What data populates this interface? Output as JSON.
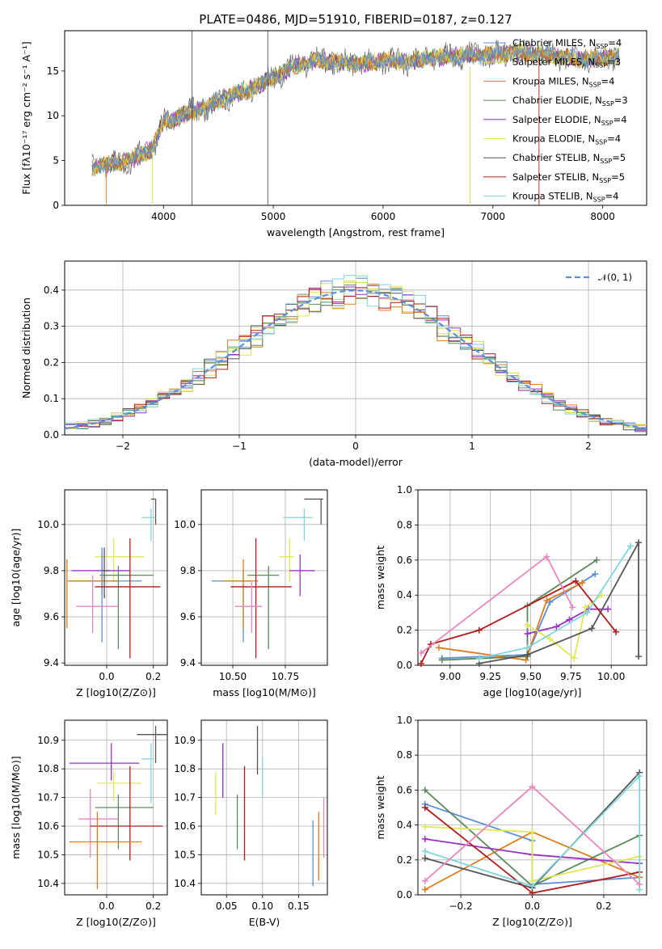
{
  "colors": {
    "c0": "#5b8fd9",
    "c1": "#d6d650",
    "c2": "#e07b1a",
    "c3": "#5a8a5a",
    "c4": "#9a2fc2",
    "c5": "#e0e856",
    "c6": "#555555",
    "c7": "#b01c1c",
    "c8": "#7fd7dd",
    "c9": "#e887c0"
  },
  "chart_data": [
    {
      "id": "spectrum",
      "type": "line",
      "title": "PLATE=0486, MJD=51910, FIBERID=0187, z=0.127",
      "xlabel": "wavelength [Angstrom, rest frame]",
      "ylabel": "Flux [fλ10⁻¹⁷ erg cm⁻² s⁻¹ A⁻¹]",
      "xlim": [
        3100,
        8400
      ],
      "ylim": [
        0,
        19.5
      ],
      "xticks": [
        "4000",
        "5000",
        "6000",
        "7000",
        "8000"
      ],
      "yticks": [
        "0",
        "5",
        "10",
        "15"
      ],
      "continuum": [
        [
          3350,
          4.2
        ],
        [
          3500,
          4.6
        ],
        [
          3700,
          5.0
        ],
        [
          3900,
          6.4
        ],
        [
          4000,
          9.2
        ],
        [
          4200,
          10.2
        ],
        [
          4400,
          11.0
        ],
        [
          4600,
          12.2
        ],
        [
          4800,
          13.0
        ],
        [
          5000,
          14.2
        ],
        [
          5200,
          15.6
        ],
        [
          5400,
          16.2
        ],
        [
          5600,
          16.0
        ],
        [
          5800,
          15.8
        ],
        [
          6000,
          16.2
        ],
        [
          6200,
          16.0
        ],
        [
          6400,
          16.4
        ],
        [
          6600,
          16.6
        ],
        [
          6800,
          16.8
        ],
        [
          7000,
          16.8
        ],
        [
          7200,
          17.1
        ],
        [
          7400,
          17.0
        ],
        [
          7600,
          16.6
        ],
        [
          7800,
          16.3
        ],
        [
          8000,
          16.5
        ],
        [
          8150,
          16.7
        ]
      ],
      "series": [
        {
          "name": "Chabrier MILES, N",
          "sub": "SSP",
          "suffix": "=4",
          "color": "#5b8fd9"
        },
        {
          "name": "Salpeter MILES, N",
          "sub": "SSP",
          "suffix": "=3",
          "color": "#d6d650"
        },
        {
          "name": "Kroupa MILES, N",
          "sub": "SSP",
          "suffix": "=4",
          "color": "#e07b1a"
        },
        {
          "name": "Chabrier ELODIE, N",
          "sub": "SSP",
          "suffix": "=3",
          "color": "#5a8a5a"
        },
        {
          "name": "Salpeter ELODIE, N",
          "sub": "SSP",
          "suffix": "=4",
          "color": "#9a2fc2"
        },
        {
          "name": "Kroupa ELODIE, N",
          "sub": "SSP",
          "suffix": "=4",
          "color": "#e0e856"
        },
        {
          "name": "Chabrier STELIB, N",
          "sub": "SSP",
          "suffix": "=5",
          "color": "#555555"
        },
        {
          "name": "Salpeter STELIB, N",
          "sub": "SSP",
          "suffix": "=5",
          "color": "#b01c1c"
        },
        {
          "name": "Kroupa STELIB, N",
          "sub": "SSP",
          "suffix": "=4",
          "color": "#7fd7dd"
        }
      ]
    },
    {
      "id": "residuals",
      "type": "bar",
      "xlabel": "(data-model)/error",
      "ylabel": "Normed distribution",
      "xlim": [
        -2.5,
        2.5
      ],
      "ylim": [
        0,
        0.48
      ],
      "xticks": [
        "−2",
        "−1",
        "0",
        "1",
        "2"
      ],
      "yticks": [
        "0.0",
        "0.1",
        "0.2",
        "0.3",
        "0.4"
      ],
      "legend": "𝒩(0, 1)",
      "bin_width": 0.1,
      "bin_start": -2.5
    },
    {
      "id": "age-Z",
      "type": "scatter",
      "xlabel": "Z [log10(Z/Z⊙)]",
      "ylabel": "age  [log10(age/yr)]",
      "xlim": [
        -0.18,
        0.26
      ],
      "ylim": [
        9.39,
        10.15
      ],
      "xticks": [
        "0.0",
        "0.2"
      ],
      "yticks": [
        "9.4",
        "9.6",
        "9.8",
        "10.0"
      ],
      "points": [
        {
          "x": 0.21,
          "y": 10.11,
          "xe": [
            0.19,
            0.21
          ],
          "ye": [
            10.11,
            10.0
          ],
          "c": "c6"
        },
        {
          "x": 0.19,
          "y": 10.03,
          "xe": [
            0.15,
            0.21
          ],
          "ye": [
            9.93,
            10.07
          ],
          "c": "c8"
        },
        {
          "x": 0.03,
          "y": 9.86,
          "xe": [
            -0.05,
            0.16
          ],
          "ye": [
            9.75,
            9.94
          ],
          "c": "c5"
        },
        {
          "x": -0.02,
          "y": 9.8,
          "xe": [
            -0.15,
            0.1
          ],
          "ye": [
            9.7,
            9.87
          ],
          "c": "c4"
        },
        {
          "x": 0.05,
          "y": 9.78,
          "xe": [
            -0.03,
            0.2
          ],
          "ye": [
            9.46,
            9.82
          ],
          "c": "c3"
        },
        {
          "x": -0.02,
          "y": 9.755,
          "xe": [
            -0.16,
            0.15
          ],
          "ye": [
            9.49,
            9.9
          ],
          "c": "c0"
        },
        {
          "x": -0.17,
          "y": 9.755,
          "xe": [
            -0.17,
            0.05
          ],
          "ye": [
            9.55,
            9.85
          ],
          "c": "c2"
        },
        {
          "x": 0.1,
          "y": 9.73,
          "xe": [
            -0.05,
            0.23
          ],
          "ye": [
            9.42,
            9.94
          ],
          "c": "c7"
        },
        {
          "x": -0.06,
          "y": 9.645,
          "xe": [
            -0.13,
            0.05
          ],
          "ye": [
            9.53,
            9.78
          ],
          "c": "c9"
        },
        {
          "x": -0.01,
          "y": 9.8,
          "xe": [
            -0.02,
            0.01
          ],
          "ye": [
            9.68,
            9.9
          ],
          "c": "c6"
        }
      ]
    },
    {
      "id": "age-mass",
      "type": "scatter",
      "xlabel": "mass [log10(M/M⊙)]",
      "ylabel": "",
      "xlim": [
        10.35,
        10.95
      ],
      "ylim": [
        9.39,
        10.15
      ],
      "xticks": [
        "10.50",
        "10.75"
      ],
      "yticks": [
        "9.4",
        "9.6",
        "9.8",
        "10.0"
      ],
      "points": [
        {
          "x": 10.92,
          "y": 10.11,
          "xe": [
            10.84,
            10.93
          ],
          "ye": [
            10.0,
            10.11
          ],
          "c": "c6"
        },
        {
          "x": 10.84,
          "y": 10.03,
          "xe": [
            10.74,
            10.88
          ],
          "ye": [
            9.93,
            10.07
          ],
          "c": "c8"
        },
        {
          "x": 10.77,
          "y": 9.86,
          "xe": [
            10.72,
            10.79
          ],
          "ye": [
            9.75,
            9.94
          ],
          "c": "c5"
        },
        {
          "x": 10.82,
          "y": 9.8,
          "xe": [
            10.77,
            10.89
          ],
          "ye": [
            9.69,
            9.87
          ],
          "c": "c4"
        },
        {
          "x": 10.67,
          "y": 9.78,
          "xe": [
            10.57,
            10.72
          ],
          "ye": [
            9.46,
            9.82
          ],
          "c": "c3"
        },
        {
          "x": 10.55,
          "y": 9.755,
          "xe": [
            10.4,
            10.59
          ],
          "ye": [
            9.49,
            9.8
          ],
          "c": "c0"
        },
        {
          "x": 10.55,
          "y": 9.755,
          "xe": [
            10.45,
            10.62
          ],
          "ye": [
            9.55,
            9.85
          ],
          "c": "c2"
        },
        {
          "x": 10.61,
          "y": 9.73,
          "xe": [
            10.49,
            10.78
          ],
          "ye": [
            9.42,
            9.94
          ],
          "c": "c7"
        },
        {
          "x": 10.59,
          "y": 9.645,
          "xe": [
            10.51,
            10.64
          ],
          "ye": [
            9.53,
            9.75
          ],
          "c": "c9"
        }
      ]
    },
    {
      "id": "weight-age",
      "type": "line",
      "xlabel": "age  [log10(age/yr)]",
      "ylabel": "mass weight",
      "xlim": [
        8.8,
        10.22
      ],
      "ylim": [
        0,
        1.0
      ],
      "xticks": [
        "9.00",
        "9.25",
        "9.50",
        "9.75",
        "10.00"
      ],
      "yticks": [
        "0.0",
        "0.2",
        "0.4",
        "0.6",
        "0.8",
        "1.0"
      ],
      "series": [
        {
          "c": "c0",
          "pts": [
            [
              8.95,
              0.04
            ],
            [
              9.48,
              0.06
            ],
            [
              9.62,
              0.36
            ],
            [
              9.9,
              0.52
            ]
          ]
        },
        {
          "c": "c2",
          "pts": [
            [
              8.93,
              0.1
            ],
            [
              9.47,
              0.03
            ],
            [
              9.6,
              0.37
            ],
            [
              9.82,
              0.47
            ]
          ]
        },
        {
          "c": "c3",
          "pts": [
            [
              8.95,
              0.03
            ],
            [
              9.48,
              0.05
            ],
            [
              9.48,
              0.34
            ],
            [
              9.91,
              0.6
            ]
          ]
        },
        {
          "c": "c4",
          "pts": [
            [
              9.48,
              0.18
            ],
            [
              9.66,
              0.22
            ],
            [
              9.74,
              0.26
            ],
            [
              9.86,
              0.32
            ],
            [
              9.98,
              0.32
            ]
          ]
        },
        {
          "c": "c5",
          "pts": [
            [
              9.48,
              0.23
            ],
            [
              9.62,
              0.15
            ],
            [
              9.77,
              0.04
            ],
            [
              9.84,
              0.33
            ],
            [
              9.94,
              0.4
            ]
          ]
        },
        {
          "c": "c6",
          "pts": [
            [
              9.18,
              0.01
            ],
            [
              9.48,
              0.06
            ],
            [
              9.88,
              0.21
            ],
            [
              10.17,
              0.7
            ],
            [
              10.17,
              0.05
            ]
          ]
        },
        {
          "c": "c7",
          "pts": [
            [
              8.82,
              0.01
            ],
            [
              8.88,
              0.12
            ],
            [
              9.18,
              0.2
            ],
            [
              9.78,
              0.48
            ],
            [
              10.03,
              0.19
            ]
          ]
        },
        {
          "c": "c8",
          "pts": [
            [
              9.18,
              0.04
            ],
            [
              9.48,
              0.1
            ],
            [
              9.85,
              0.3
            ],
            [
              10.12,
              0.68
            ]
          ]
        },
        {
          "c": "c9",
          "pts": [
            [
              8.82,
              0.07
            ],
            [
              9.6,
              0.62
            ],
            [
              9.76,
              0.33
            ]
          ]
        }
      ]
    },
    {
      "id": "mass-Z",
      "type": "scatter",
      "xlabel": "Z [log10(Z/Z⊙)]",
      "ylabel": "mass [log10(M/M⊙)]",
      "xlim": [
        -0.18,
        0.26
      ],
      "ylim": [
        10.36,
        10.97
      ],
      "xticks": [
        "0.0",
        "0.2"
      ],
      "yticks": [
        "10.4",
        "10.5",
        "10.6",
        "10.7",
        "10.8",
        "10.9"
      ],
      "points": [
        {
          "x": 0.21,
          "y": 10.92,
          "xe": [
            0.13,
            0.26
          ],
          "ye": [
            10.82,
            10.95
          ],
          "c": "c6"
        },
        {
          "x": 0.19,
          "y": 10.835,
          "xe": [
            0.15,
            0.2
          ],
          "ye": [
            10.68,
            10.89
          ],
          "c": "c8"
        },
        {
          "x": 0.02,
          "y": 10.82,
          "xe": [
            -0.16,
            0.14
          ],
          "ye": [
            10.76,
            10.89
          ],
          "c": "c4"
        },
        {
          "x": 0.03,
          "y": 10.75,
          "xe": [
            -0.04,
            0.15
          ],
          "ye": [
            10.69,
            10.79
          ],
          "c": "c5"
        },
        {
          "x": 0.05,
          "y": 10.665,
          "xe": [
            -0.05,
            0.2
          ],
          "ye": [
            10.52,
            10.71
          ],
          "c": "c3"
        },
        {
          "x": -0.07,
          "y": 10.625,
          "xe": [
            -0.12,
            0.05
          ],
          "ye": [
            10.49,
            10.73
          ],
          "c": "c9"
        },
        {
          "x": 0.1,
          "y": 10.6,
          "xe": [
            -0.07,
            0.24
          ],
          "ye": [
            10.48,
            10.81
          ],
          "c": "c7"
        },
        {
          "x": -0.04,
          "y": 10.545,
          "xe": [
            -0.16,
            0.15
          ],
          "ye": [
            10.38,
            10.65
          ],
          "c": "c2"
        }
      ]
    },
    {
      "id": "mass-EBV",
      "type": "scatter",
      "xlabel": "E(B-V)",
      "ylabel": "",
      "xlim": [
        0.015,
        0.19
      ],
      "ylim": [
        10.36,
        10.97
      ],
      "xticks": [
        "0.05",
        "0.10",
        "0.15"
      ],
      "yticks": [
        "10.4",
        "10.5",
        "10.6",
        "10.7",
        "10.8",
        "10.9"
      ],
      "points": [
        {
          "x": 0.035,
          "y": 10.72,
          "ye": [
            10.64,
            10.79
          ],
          "c": "c5"
        },
        {
          "x": 0.045,
          "y": 10.79,
          "ye": [
            10.7,
            10.89
          ],
          "c": "c4"
        },
        {
          "x": 0.065,
          "y": 10.62,
          "ye": [
            10.52,
            10.71
          ],
          "c": "c3"
        },
        {
          "x": 0.075,
          "y": 10.64,
          "ye": [
            10.48,
            10.81
          ],
          "c": "c7"
        },
        {
          "x": 0.093,
          "y": 10.87,
          "ye": [
            10.78,
            10.95
          ],
          "c": "c6"
        },
        {
          "x": 0.1,
          "y": 10.76,
          "ye": [
            10.7,
            10.84
          ],
          "c": "c8"
        },
        {
          "x": 0.17,
          "y": 10.5,
          "ye": [
            10.39,
            10.62
          ],
          "c": "c0"
        },
        {
          "x": 0.178,
          "y": 10.53,
          "ye": [
            10.41,
            10.65
          ],
          "c": "c2"
        },
        {
          "x": 0.185,
          "y": 10.59,
          "ye": [
            10.49,
            10.7
          ],
          "c": "c9"
        }
      ]
    },
    {
      "id": "weight-Z",
      "type": "line",
      "xlabel": "Z [log10(Z/Z⊙)]",
      "ylabel": "mass weight",
      "xlim": [
        -0.32,
        0.32
      ],
      "ylim": [
        0,
        1.0
      ],
      "xticks": [
        "−0.2",
        "0.0",
        "0.2"
      ],
      "yticks": [
        "0.0",
        "0.2",
        "0.4",
        "0.6",
        "0.8",
        "1.0"
      ],
      "series": [
        {
          "c": "c0",
          "pts": [
            [
              -0.3,
              0.52
            ],
            [
              0.0,
              0.31
            ],
            [
              0.0,
              0.06
            ],
            [
              0.3,
              0.1
            ]
          ]
        },
        {
          "c": "c2",
          "pts": [
            [
              -0.3,
              0.03
            ],
            [
              0.0,
              0.36
            ],
            [
              0.3,
              0.1
            ]
          ]
        },
        {
          "c": "c3",
          "pts": [
            [
              -0.3,
              0.6
            ],
            [
              0.0,
              0.05
            ],
            [
              0.3,
              0.34
            ]
          ]
        },
        {
          "c": "c4",
          "pts": [
            [
              -0.3,
              0.32
            ],
            [
              0.0,
              0.23
            ],
            [
              0.3,
              0.18
            ]
          ]
        },
        {
          "c": "c5",
          "pts": [
            [
              -0.3,
              0.39
            ],
            [
              0.0,
              0.36
            ],
            [
              0.0,
              0.08
            ],
            [
              0.3,
              0.22
            ]
          ]
        },
        {
          "c": "c6",
          "pts": [
            [
              -0.3,
              0.21
            ],
            [
              0.0,
              0.04
            ],
            [
              0.3,
              0.7
            ]
          ]
        },
        {
          "c": "c7",
          "pts": [
            [
              -0.3,
              0.5
            ],
            [
              0.0,
              0.01
            ],
            [
              0.3,
              0.13
            ]
          ]
        },
        {
          "c": "c8",
          "pts": [
            [
              -0.3,
              0.25
            ],
            [
              0.0,
              0.05
            ],
            [
              0.3,
              0.68
            ],
            [
              0.3,
              0.03
            ]
          ]
        },
        {
          "c": "c9",
          "pts": [
            [
              -0.3,
              0.08
            ],
            [
              0.0,
              0.62
            ],
            [
              0.3,
              0.06
            ]
          ]
        }
      ]
    }
  ]
}
